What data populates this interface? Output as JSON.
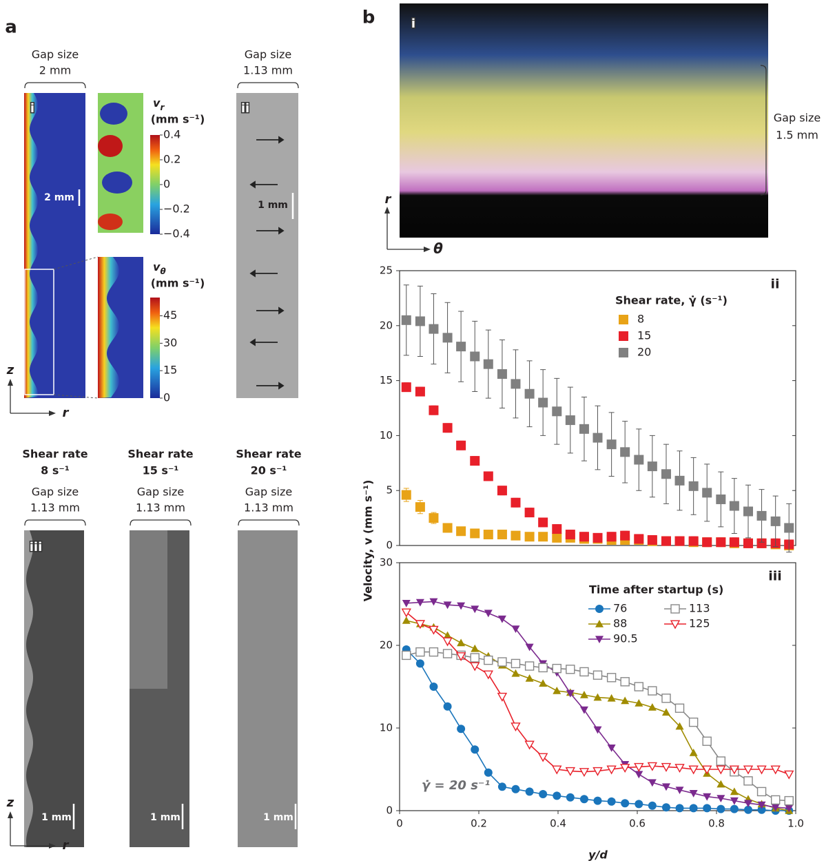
{
  "panel_a": {
    "label": "a",
    "i": {
      "tag": "i",
      "gap_heading": "Gap size",
      "gap": "2 mm",
      "scale": "2 mm"
    },
    "ii": {
      "tag": "ii",
      "gap_heading": "Gap size",
      "gap": "1.13 mm",
      "scale": "1 mm"
    },
    "colorbar_r": {
      "symbol": "v",
      "subscript": "r",
      "unit": "(mm s⁻¹)",
      "range": [
        -0.4,
        0.4
      ],
      "ticks": [
        0.4,
        0.2,
        0,
        {
          "value": -0.2,
          "label": "−0.2"
        },
        {
          "value": -0.4,
          "label": "−0.4"
        }
      ]
    },
    "colorbar_theta": {
      "symbol": "v",
      "subscript": "θ",
      "unit": "(mm s⁻¹)",
      "range": [
        0,
        55
      ],
      "ticks": [
        45,
        30,
        15,
        0
      ]
    },
    "axes_top": {
      "vertical": "z",
      "horizontal": "r"
    },
    "iii": {
      "tag": "iii",
      "images": [
        {
          "heading": "Shear rate",
          "rate": "8 s⁻¹",
          "gap_heading": "Gap size",
          "gap": "1.13 mm",
          "scale": "1 mm"
        },
        {
          "heading": "Shear rate",
          "rate": "15 s⁻¹",
          "gap_heading": "Gap size",
          "gap": "1.13 mm",
          "scale": "1 mm"
        },
        {
          "heading": "Shear rate",
          "rate": "20 s⁻¹",
          "gap_heading": "Gap size",
          "gap": "1.13 mm",
          "scale": "1 mm"
        }
      ]
    },
    "axes_bottom": {
      "vertical": "z",
      "horizontal": "r"
    }
  },
  "panel_b": {
    "label": "b",
    "i": {
      "tag": "i",
      "gap_heading": "Gap size",
      "gap": "1.5 mm",
      "vertical": "r",
      "horizontal": "θ"
    }
  },
  "chart_data": [
    {
      "type": "scatter",
      "panel_label": "ii",
      "y_label": "Velocity, v (mm s⁻¹)",
      "legend_title": "Shear rate, γ̇ (s⁻¹)",
      "legend": "upper right",
      "xlim": [
        0,
        1
      ],
      "ylim": [
        0,
        25
      ],
      "yticks": [
        0,
        5,
        10,
        15,
        20,
        25
      ],
      "x": [
        0.017,
        0.052,
        0.086,
        0.121,
        0.155,
        0.19,
        0.224,
        0.259,
        0.293,
        0.328,
        0.362,
        0.397,
        0.431,
        0.466,
        0.5,
        0.535,
        0.569,
        0.604,
        0.638,
        0.673,
        0.707,
        0.742,
        0.776,
        0.811,
        0.845,
        0.88,
        0.914,
        0.949,
        0.983
      ],
      "series": [
        {
          "name": "8",
          "color": "#e8a317",
          "marker": "square",
          "values": [
            4.6,
            3.5,
            2.5,
            1.6,
            1.3,
            1.1,
            1.0,
            1.0,
            0.9,
            0.8,
            0.8,
            0.7,
            0.7,
            0.6,
            0.6,
            0.5,
            0.5,
            0.5,
            0.4,
            0.4,
            0.4,
            0.3,
            0.3,
            0.3,
            0.2,
            0.2,
            0.2,
            0.1,
            0.0
          ],
          "errors": [
            0.6,
            0.6,
            0.5,
            0.4,
            0.3,
            0.3,
            0.3,
            0.3,
            0.3,
            0.3,
            0.3,
            0.3,
            0.3,
            0.3,
            0.3,
            0.3,
            0.3,
            0.3,
            0.3,
            0.3,
            0.3,
            0.3,
            0.3,
            0.3,
            0.3,
            0.3,
            0.3,
            0.3,
            0.3
          ]
        },
        {
          "name": "15",
          "color": "#e8202a",
          "marker": "square",
          "values": [
            14.4,
            14.0,
            12.3,
            10.7,
            9.1,
            7.7,
            6.3,
            5.0,
            3.9,
            3.0,
            2.1,
            1.5,
            1.0,
            0.8,
            0.7,
            0.8,
            0.9,
            0.6,
            0.5,
            0.4,
            0.4,
            0.4,
            0.3,
            0.3,
            0.3,
            0.2,
            0.2,
            0.2,
            0.1
          ],
          "errors": [
            0.4,
            0.4,
            0.4,
            0.4,
            0.4,
            0.4,
            0.4,
            0.4,
            0.4,
            0.4,
            0.4,
            0.4,
            0.4,
            0.4,
            0.4,
            0.4,
            0.4,
            0.4,
            0.4,
            0.4,
            0.4,
            0.4,
            0.4,
            0.4,
            0.4,
            0.4,
            0.4,
            0.4,
            0.4
          ]
        },
        {
          "name": "20",
          "color": "#808080",
          "marker": "square",
          "values": [
            20.5,
            20.4,
            19.7,
            18.9,
            18.1,
            17.2,
            16.5,
            15.6,
            14.7,
            13.8,
            13.0,
            12.2,
            11.4,
            10.6,
            9.8,
            9.2,
            8.5,
            7.8,
            7.2,
            6.5,
            5.9,
            5.4,
            4.8,
            4.2,
            3.6,
            3.1,
            2.7,
            2.2,
            1.6
          ],
          "errors": [
            3.2,
            3.2,
            3.2,
            3.2,
            3.2,
            3.2,
            3.1,
            3.1,
            3.1,
            3.0,
            3.0,
            3.0,
            3.0,
            2.9,
            2.9,
            2.9,
            2.8,
            2.8,
            2.8,
            2.7,
            2.7,
            2.6,
            2.6,
            2.5,
            2.5,
            2.4,
            2.4,
            2.3,
            2.2
          ]
        }
      ]
    },
    {
      "type": "line",
      "panel_label": "iii",
      "x_label": "y/d",
      "annotation": "γ̇ = 20 s⁻¹",
      "legend_title": "Time after startup (s)",
      "legend": "upper right",
      "xlim": [
        0,
        1
      ],
      "ylim": [
        0,
        30
      ],
      "yticks": [
        0,
        10,
        20,
        30
      ],
      "xticks": [
        0,
        0.2,
        0.4,
        0.6,
        0.8,
        {
          "value": 1,
          "label": "1.0"
        }
      ],
      "x": [
        0.017,
        0.052,
        0.086,
        0.121,
        0.155,
        0.19,
        0.224,
        0.259,
        0.293,
        0.328,
        0.362,
        0.397,
        0.431,
        0.466,
        0.5,
        0.535,
        0.569,
        0.604,
        0.638,
        0.673,
        0.707,
        0.742,
        0.776,
        0.811,
        0.845,
        0.88,
        0.914,
        0.949,
        0.983
      ],
      "series": [
        {
          "name": "76",
          "color": "#1a75bb",
          "marker": "circle",
          "values": [
            19.5,
            17.8,
            15.0,
            12.6,
            9.9,
            7.4,
            4.6,
            2.9,
            2.6,
            2.3,
            2.0,
            1.8,
            1.6,
            1.4,
            1.2,
            1.1,
            0.9,
            0.8,
            0.6,
            0.4,
            0.3,
            0.3,
            0.3,
            0.2,
            0.2,
            0.1,
            0.1,
            0.0,
            0.0
          ]
        },
        {
          "name": "88",
          "color": "#a08c00",
          "marker": "triangle-up",
          "values": [
            23.0,
            22.6,
            22.2,
            21.2,
            20.3,
            19.6,
            18.7,
            17.6,
            16.6,
            16.0,
            15.4,
            14.5,
            14.3,
            14.0,
            13.7,
            13.6,
            13.3,
            13.0,
            12.5,
            11.9,
            10.2,
            7.0,
            4.5,
            3.2,
            2.3,
            1.4,
            0.8,
            0.3,
            0.0
          ]
        },
        {
          "name": "90.5",
          "color": "#7b2a8e",
          "marker": "triangle-down",
          "values": [
            25.1,
            25.2,
            25.3,
            24.9,
            24.8,
            24.4,
            23.9,
            23.2,
            22.0,
            19.8,
            17.8,
            16.7,
            14.2,
            12.2,
            9.8,
            7.6,
            5.6,
            4.4,
            3.4,
            2.9,
            2.5,
            2.1,
            1.7,
            1.5,
            1.2,
            0.9,
            0.7,
            0.4,
            0.3
          ]
        },
        {
          "name": "113",
          "color": "#888888",
          "marker": "square-open",
          "values": [
            18.8,
            19.2,
            19.2,
            19.0,
            18.8,
            18.5,
            18.2,
            18.0,
            17.8,
            17.5,
            17.3,
            17.2,
            17.1,
            16.8,
            16.4,
            16.1,
            15.6,
            15.0,
            14.5,
            13.6,
            12.4,
            10.7,
            8.4,
            6.0,
            4.7,
            3.6,
            2.3,
            1.3,
            1.2
          ]
        },
        {
          "name": "125",
          "color": "#e8202a",
          "marker": "triangle-down-open",
          "values": [
            24.0,
            22.6,
            21.9,
            20.5,
            18.7,
            17.5,
            16.5,
            13.8,
            10.2,
            8.0,
            6.5,
            5.0,
            4.8,
            4.7,
            4.8,
            5.0,
            5.2,
            5.3,
            5.4,
            5.3,
            5.2,
            5.0,
            5.0,
            5.0,
            5.0,
            5.0,
            5.0,
            5.0,
            4.4
          ]
        }
      ]
    }
  ]
}
